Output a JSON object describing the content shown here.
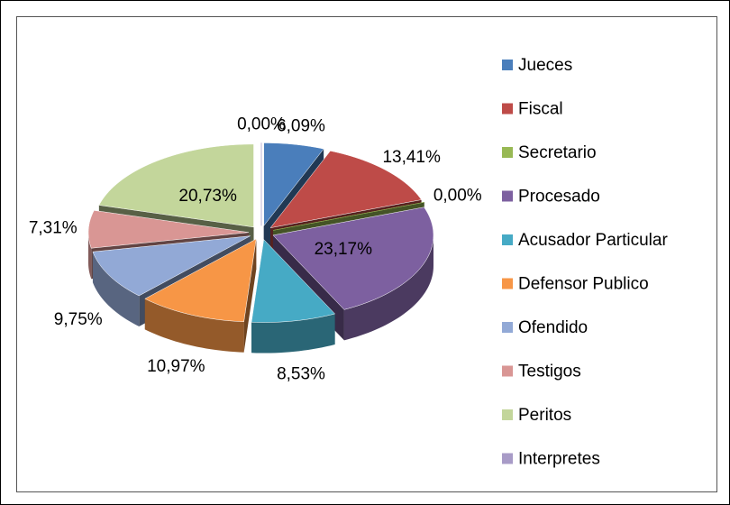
{
  "chart_data": {
    "type": "pie",
    "categories": [
      "Jueces",
      "Fiscal",
      "Secretario",
      "Procesado",
      "Acusador Particular",
      "Defensor Publico",
      "Ofendido",
      "Testigos",
      "Peritos",
      "Interpretes"
    ],
    "values": [
      6.09,
      13.41,
      0.0,
      23.17,
      8.53,
      10.97,
      9.75,
      7.31,
      20.73,
      0.0
    ],
    "value_labels": [
      "6,09%",
      "13,41%",
      "0,00%",
      "23,17%",
      "8,53%",
      "10,97%",
      "9,75%",
      "7,31%",
      "20,73%",
      "0,00%"
    ],
    "colors": [
      "#4a7ebb",
      "#be4b48",
      "#98b954",
      "#7d60a0",
      "#46aac5",
      "#f79646",
      "#92a9d6",
      "#d99694",
      "#c3d69b",
      "#a89bc7"
    ],
    "legend": "right"
  }
}
